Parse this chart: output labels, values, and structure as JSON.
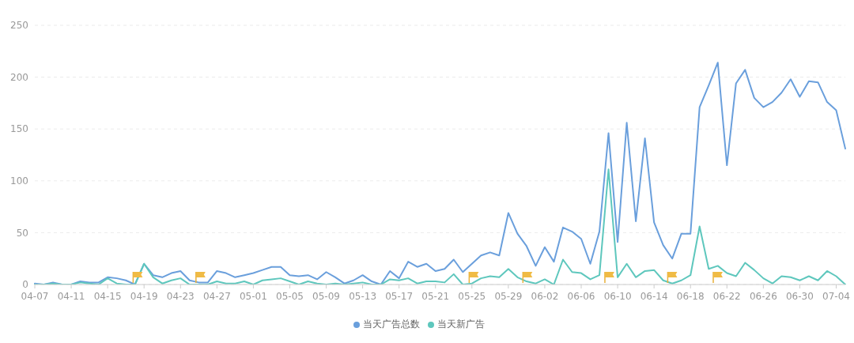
{
  "chart_data": {
    "type": "line",
    "categories": [
      "04-07",
      null,
      null,
      null,
      "04-11",
      null,
      null,
      null,
      "04-15",
      null,
      null,
      null,
      "04-19",
      null,
      null,
      null,
      "04-23",
      null,
      null,
      null,
      "04-27",
      null,
      null,
      null,
      "05-01",
      null,
      null,
      null,
      "05-05",
      null,
      null,
      null,
      "05-09",
      null,
      null,
      null,
      "05-13",
      null,
      null,
      null,
      "05-17",
      null,
      null,
      null,
      "05-21",
      null,
      null,
      null,
      "05-25",
      null,
      null,
      null,
      "05-29",
      null,
      null,
      null,
      "06-02",
      null,
      null,
      null,
      "06-06",
      null,
      null,
      null,
      "06-10",
      null,
      null,
      null,
      "06-14",
      null,
      null,
      null,
      "06-18",
      null,
      null,
      null,
      "06-22",
      null,
      null,
      null,
      "06-26",
      null,
      null,
      null,
      "06-30",
      null,
      null,
      null,
      "07-04",
      null
    ],
    "series": [
      {
        "name": "当天广告总数",
        "color": "#6a9fdc",
        "values": [
          1,
          0,
          2,
          0,
          0,
          3,
          2,
          2,
          7,
          6,
          4,
          0,
          20,
          9,
          7,
          11,
          13,
          4,
          2,
          2,
          13,
          11,
          7,
          9,
          11,
          14,
          17,
          17,
          9,
          8,
          9,
          5,
          12,
          7,
          1,
          4,
          9,
          3,
          0,
          13,
          6,
          22,
          17,
          20,
          13,
          15,
          24,
          12,
          20,
          28,
          31,
          28,
          69,
          49,
          37,
          18,
          36,
          22,
          55,
          51,
          44,
          20,
          51,
          146,
          41,
          156,
          61,
          141,
          60,
          38,
          25,
          49,
          49,
          171,
          192,
          214,
          115,
          194,
          207,
          180,
          171,
          176,
          185,
          198,
          181,
          196,
          195,
          176,
          168,
          131
        ]
      },
      {
        "name": "当天新广告",
        "color": "#5ec7bd",
        "values": [
          0,
          0,
          1,
          0,
          0,
          2,
          1,
          0,
          6,
          1,
          0,
          0,
          20,
          7,
          1,
          4,
          6,
          0,
          0,
          0,
          3,
          1,
          1,
          3,
          0,
          4,
          5,
          6,
          3,
          0,
          3,
          1,
          0,
          1,
          0,
          1,
          2,
          0,
          0,
          5,
          4,
          6,
          1,
          3,
          3,
          2,
          10,
          0,
          1,
          6,
          8,
          7,
          15,
          7,
          3,
          1,
          5,
          0,
          24,
          12,
          11,
          5,
          9,
          111,
          7,
          20,
          7,
          13,
          14,
          4,
          1,
          4,
          9,
          56,
          15,
          18,
          11,
          8,
          21,
          14,
          6,
          1,
          8,
          7,
          4,
          8,
          4,
          13,
          8,
          0
        ]
      }
    ],
    "ylim": [
      0,
      250
    ],
    "yticks": [
      0,
      50,
      100,
      150,
      200,
      250
    ],
    "grid": "y",
    "legend": "bottom",
    "marker": "none",
    "line_style": "solid"
  }
}
